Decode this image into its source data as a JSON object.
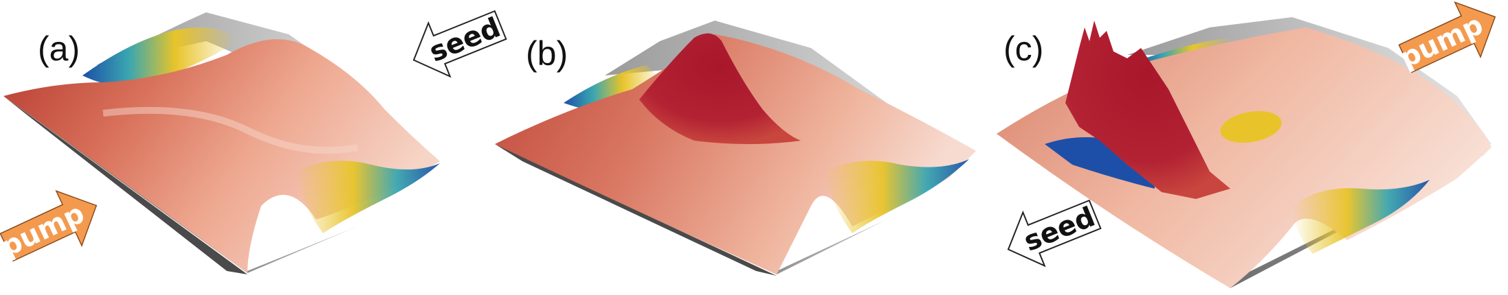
{
  "panels": [
    {
      "label": "(a)"
    },
    {
      "label": "(b)"
    },
    {
      "label": "(c)"
    }
  ],
  "arrows": {
    "seed_a": {
      "text": "seed"
    },
    "pump_a": {
      "text": "pump"
    },
    "seed_c": {
      "text": "seed"
    },
    "pump_c": {
      "text": "pump"
    }
  },
  "colors": {
    "surface_red": "#c0392b",
    "surface_peach": "#f2c4b2",
    "peak_red": "#a8172a",
    "valley_yellow": "#e8c42a",
    "valley_teal": "#3aa6b0",
    "valley_blue": "#1d4fa8",
    "base_gray": "#555555",
    "pump_arrow": "#f39a4f",
    "seed_arrow": "#ffffff"
  }
}
